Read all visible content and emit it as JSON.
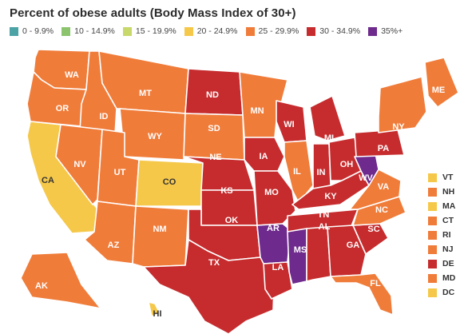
{
  "title": "Percent of obese adults (Body Mass Index of 30+)",
  "legend": [
    {
      "label": "0 - 9.9%",
      "color": "#4ba3a6"
    },
    {
      "label": "10 - 14.9%",
      "color": "#8cc46e"
    },
    {
      "label": "15 - 19.9%",
      "color": "#c9d86a"
    },
    {
      "label": "20 - 24.9%",
      "color": "#f5c84a"
    },
    {
      "label": "25 - 29.9%",
      "color": "#f07c3a"
    },
    {
      "label": "30 - 34.9%",
      "color": "#c62c2e"
    },
    {
      "label": "35%+",
      "color": "#6e2a8c"
    }
  ],
  "states": [
    {
      "abbr": "WA",
      "bin": 4
    },
    {
      "abbr": "OR",
      "bin": 4
    },
    {
      "abbr": "CA",
      "bin": 3
    },
    {
      "abbr": "ID",
      "bin": 4
    },
    {
      "abbr": "NV",
      "bin": 4
    },
    {
      "abbr": "MT",
      "bin": 4
    },
    {
      "abbr": "WY",
      "bin": 4
    },
    {
      "abbr": "UT",
      "bin": 4
    },
    {
      "abbr": "AZ",
      "bin": 4
    },
    {
      "abbr": "CO",
      "bin": 3
    },
    {
      "abbr": "NM",
      "bin": 4
    },
    {
      "abbr": "ND",
      "bin": 5
    },
    {
      "abbr": "SD",
      "bin": 4
    },
    {
      "abbr": "NE",
      "bin": 5
    },
    {
      "abbr": "KS",
      "bin": 5
    },
    {
      "abbr": "OK",
      "bin": 5
    },
    {
      "abbr": "TX",
      "bin": 5
    },
    {
      "abbr": "MN",
      "bin": 4
    },
    {
      "abbr": "IA",
      "bin": 5
    },
    {
      "abbr": "MO",
      "bin": 5
    },
    {
      "abbr": "AR",
      "bin": 6
    },
    {
      "abbr": "LA",
      "bin": 5
    },
    {
      "abbr": "WI",
      "bin": 5
    },
    {
      "abbr": "IL",
      "bin": 4
    },
    {
      "abbr": "MI",
      "bin": 5
    },
    {
      "abbr": "IN",
      "bin": 5
    },
    {
      "abbr": "OH",
      "bin": 5
    },
    {
      "abbr": "KY",
      "bin": 5
    },
    {
      "abbr": "TN",
      "bin": 5
    },
    {
      "abbr": "MS",
      "bin": 6
    },
    {
      "abbr": "AL",
      "bin": 5
    },
    {
      "abbr": "GA",
      "bin": 5
    },
    {
      "abbr": "FL",
      "bin": 4
    },
    {
      "abbr": "SC",
      "bin": 5
    },
    {
      "abbr": "NC",
      "bin": 4
    },
    {
      "abbr": "VA",
      "bin": 4
    },
    {
      "abbr": "WV",
      "bin": 6
    },
    {
      "abbr": "PA",
      "bin": 5
    },
    {
      "abbr": "NY",
      "bin": 4
    },
    {
      "abbr": "ME",
      "bin": 4
    },
    {
      "abbr": "AK",
      "bin": 4
    },
    {
      "abbr": "HI",
      "bin": 3
    }
  ],
  "small_states": [
    {
      "abbr": "VT",
      "bin": 3
    },
    {
      "abbr": "NH",
      "bin": 4
    },
    {
      "abbr": "MA",
      "bin": 3
    },
    {
      "abbr": "CT",
      "bin": 4
    },
    {
      "abbr": "RI",
      "bin": 4
    },
    {
      "abbr": "NJ",
      "bin": 4
    },
    {
      "abbr": "DE",
      "bin": 5
    },
    {
      "abbr": "MD",
      "bin": 4
    },
    {
      "abbr": "DC",
      "bin": 3
    }
  ]
}
